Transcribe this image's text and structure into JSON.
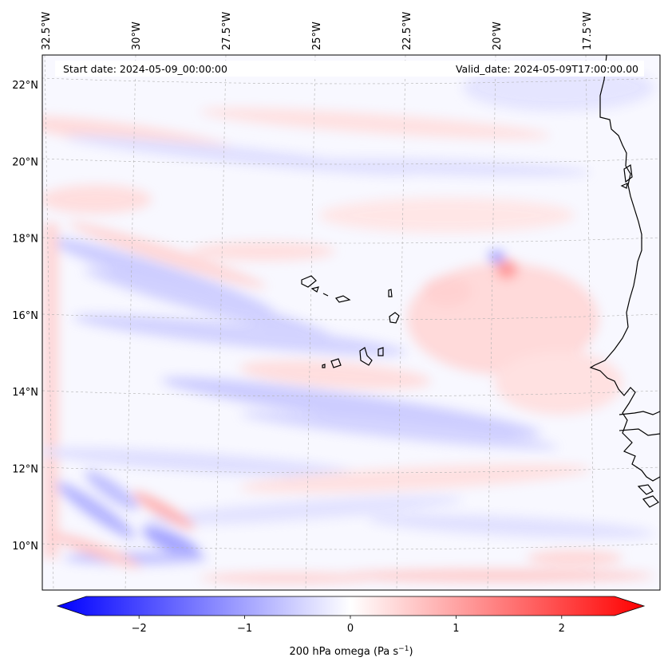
{
  "map": {
    "start_date_label": "Start date: 2024-05-09_00:00:00",
    "valid_date_label": "Valid_date: 2024-05-09T17:00:00.00",
    "extent": {
      "lon_min": -33.0,
      "lon_max": -15.5,
      "lat_min": 9.0,
      "lat_max": 22.8
    },
    "lon_ticks": [
      {
        "lon": -32.5,
        "label": "32.5°W"
      },
      {
        "lon": -30.0,
        "label": "30°W"
      },
      {
        "lon": -27.5,
        "label": "27.5°W"
      },
      {
        "lon": -25.0,
        "label": "25°W"
      },
      {
        "lon": -22.5,
        "label": "22.5°W"
      },
      {
        "lon": -20.0,
        "label": "20°W"
      },
      {
        "lon": -17.5,
        "label": "17.5°W"
      }
    ],
    "lat_ticks": [
      {
        "lat": 22,
        "label": "22°N"
      },
      {
        "lat": 20,
        "label": "20°N"
      },
      {
        "lat": 18,
        "label": "18°N"
      },
      {
        "lat": 16,
        "label": "16°N"
      },
      {
        "lat": 14,
        "label": "14°N"
      },
      {
        "lat": 12,
        "label": "12°N"
      },
      {
        "lat": 10,
        "label": "10°N"
      }
    ],
    "field_colormap": "bwr",
    "grid": true
  },
  "colorbar": {
    "label_prefix": "200 hPa omega (Pa s",
    "label_exp": "−1",
    "label_suffix": ")",
    "vmin": -2.5,
    "vmax": 2.5,
    "levels": 50,
    "extend": "both",
    "ticks": [
      {
        "value": -2,
        "label": "−2"
      },
      {
        "value": -1,
        "label": "−1"
      },
      {
        "value": 0,
        "label": "0"
      },
      {
        "value": 1,
        "label": "1"
      },
      {
        "value": 2,
        "label": "2"
      }
    ],
    "colors": {
      "neg": "#0000ff",
      "mid": "#ffffff",
      "pos": "#ff0000"
    }
  }
}
